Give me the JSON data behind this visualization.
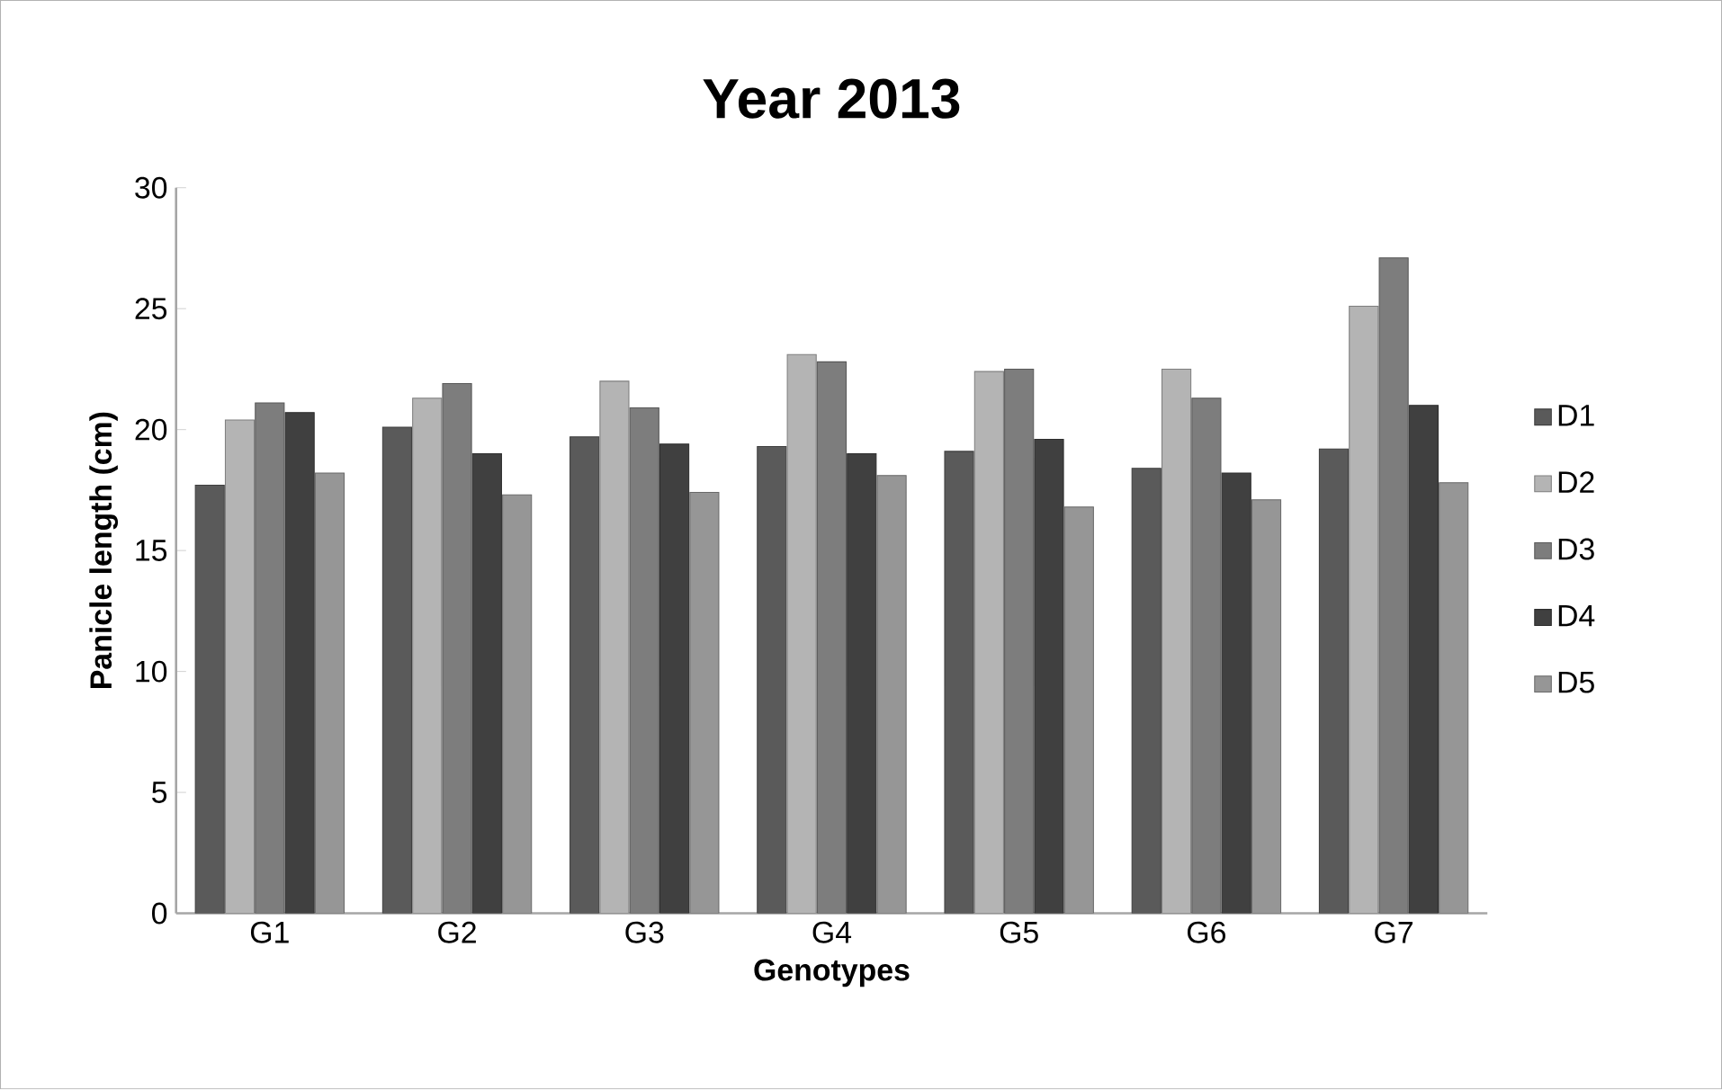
{
  "chart_data": {
    "type": "bar",
    "title": "Year 2013",
    "xlabel": "Genotypes",
    "ylabel": "Panicle length (cm)",
    "categories": [
      "G1",
      "G2",
      "G3",
      "G4",
      "G5",
      "G6",
      "G7"
    ],
    "series": [
      {
        "name": "D1",
        "color": "#5a5a5a",
        "values": [
          17.7,
          20.1,
          19.7,
          19.3,
          19.1,
          18.4,
          19.2
        ]
      },
      {
        "name": "D2",
        "color": "#b4b4b4",
        "values": [
          20.4,
          21.3,
          22.0,
          23.1,
          22.4,
          22.5,
          25.1
        ]
      },
      {
        "name": "D3",
        "color": "#7d7d7d",
        "values": [
          21.1,
          21.9,
          20.9,
          22.8,
          22.5,
          21.3,
          27.1
        ]
      },
      {
        "name": "D4",
        "color": "#404040",
        "values": [
          20.7,
          19.0,
          19.4,
          19.0,
          19.6,
          18.2,
          21.0
        ]
      },
      {
        "name": "D5",
        "color": "#969696",
        "values": [
          18.2,
          17.3,
          17.4,
          18.1,
          16.8,
          17.1,
          17.8
        ]
      }
    ],
    "ylim": [
      0,
      30
    ],
    "yticks": [
      0,
      5,
      10,
      15,
      20,
      25,
      30
    ],
    "grid": false,
    "legend": "right"
  }
}
